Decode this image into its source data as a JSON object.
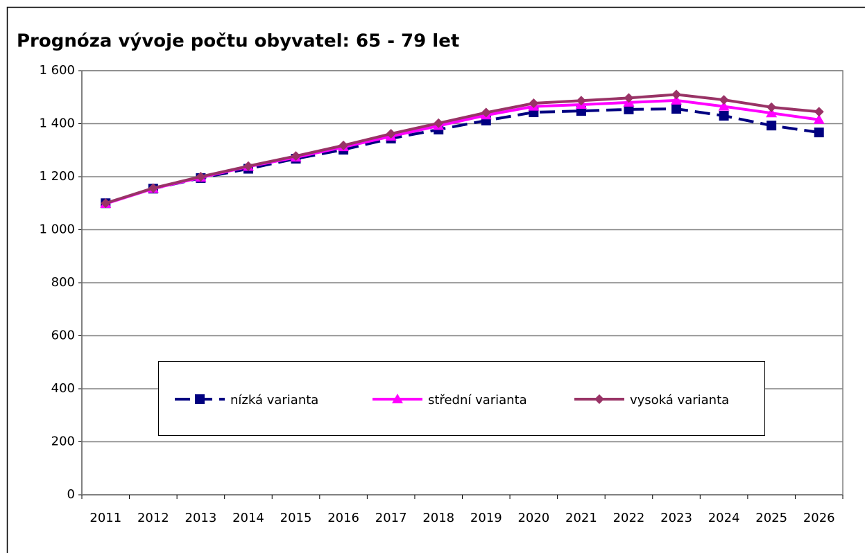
{
  "chart_data": {
    "type": "line",
    "title": "Prognóza vývoje počtu obyvatel: 65 - 79 let",
    "categories": [
      "2011",
      "2012",
      "2013",
      "2014",
      "2015",
      "2016",
      "2017",
      "2018",
      "2019",
      "2020",
      "2021",
      "2022",
      "2023",
      "2024",
      "2025",
      "2026"
    ],
    "series": [
      {
        "name": "nízká varianta",
        "color": "#000080",
        "marker": "square",
        "dashed": true,
        "values": [
          1100,
          1155,
          1195,
          1230,
          1268,
          1302,
          1344,
          1378,
          1412,
          1443,
          1448,
          1454,
          1456,
          1430,
          1393,
          1367
        ]
      },
      {
        "name": "střední varianta",
        "color": "#ff00ff",
        "marker": "triangle",
        "dashed": false,
        "values": [
          1098,
          1155,
          1197,
          1238,
          1273,
          1312,
          1352,
          1392,
          1432,
          1465,
          1472,
          1480,
          1488,
          1465,
          1440,
          1415
        ]
      },
      {
        "name": "vysoká varianta",
        "color": "#993366",
        "marker": "diamond",
        "dashed": false,
        "values": [
          1100,
          1157,
          1200,
          1240,
          1278,
          1318,
          1362,
          1402,
          1442,
          1477,
          1487,
          1497,
          1510,
          1490,
          1462,
          1445
        ]
      }
    ],
    "ylim": [
      0,
      1600
    ],
    "yticks": [
      0,
      200,
      400,
      600,
      800,
      {
        "value": 1000,
        "label": "1 000"
      },
      {
        "value": 1200,
        "label": "1 200"
      },
      {
        "value": 1400,
        "label": "1 400"
      },
      {
        "value": 1600,
        "label": "1 600"
      }
    ],
    "grid": true
  }
}
